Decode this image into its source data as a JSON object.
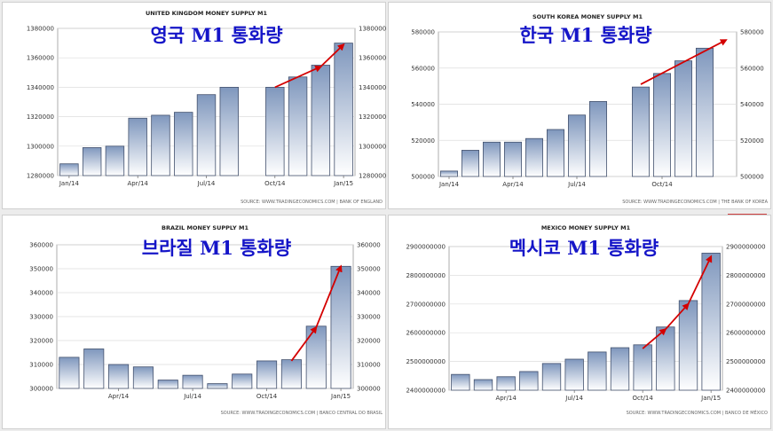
{
  "panels": [
    {
      "title": "UNITED KINGDOM MONEY SUPPLY M1",
      "overlay": "영국 M1 통화량",
      "source": "SOURCE: WWW.TRADINGECONOMICS.COM  |  BANK OF ENGLAND",
      "color_top": "#7f97bd",
      "color_bot": "#ffffff",
      "arrow_color": "#d40000"
    },
    {
      "title": "SOUTH KOREA MONEY SUPPLY M1",
      "overlay": "한국 M1 통화량",
      "source": "SOURCE: WWW.TRADINGECONOMICS.COM  |  THE BANK OF KOREA",
      "color_top": "#7f97bd",
      "color_bot": "#ffffff",
      "arrow_color": "#d40000"
    },
    {
      "title": "BRAZIL MONEY SUPPLY M1",
      "overlay": "브라질 M1 통화량",
      "source": "SOURCE: WWW.TRADINGECONOMICS.COM  |  BANCO CENTRAL DO BRASIL",
      "color_top": "#7f97bd",
      "color_bot": "#ffffff",
      "arrow_color": "#d40000"
    },
    {
      "title": "MEXICO MONEY SUPPLY M1",
      "overlay": "멕시코 M1 통화량",
      "source": "SOURCE: WWW.TRADINGECONOMICS.COM  |  BANCO DE MÉXICO",
      "color_top": "#7f97bd",
      "color_bot": "#ffffff",
      "arrow_color": "#d40000"
    }
  ],
  "chart_data": [
    {
      "type": "bar",
      "title": "UNITED KINGDOM MONEY SUPPLY M1",
      "x_ticks": [
        "Jan/14",
        "Apr/14",
        "Jul/14",
        "Oct/14",
        "Jan/15"
      ],
      "values": [
        1288000,
        1299000,
        1300000,
        1319000,
        1321000,
        1323000,
        1335000,
        1340000,
        null,
        1340000,
        1347000,
        1355000,
        1370000
      ],
      "ylim": [
        1280000,
        1380000
      ],
      "y_ticks": [
        "1280000",
        "1300000",
        "1320000",
        "1340000",
        "1360000",
        "1380000"
      ],
      "grid": true,
      "dual_axis": true,
      "trend": [
        [
          9,
          1340000
        ],
        [
          11,
          1354000
        ],
        [
          12,
          1369000
        ]
      ]
    },
    {
      "type": "bar",
      "title": "SOUTH KOREA MONEY SUPPLY M1",
      "x_ticks": [
        "Jan/14",
        "Apr/14",
        "Jul/14",
        "Oct/14"
      ],
      "values": [
        503000,
        514500,
        519000,
        519000,
        521000,
        526000,
        534000,
        541500,
        null,
        549500,
        557000,
        564000,
        571000
      ],
      "ylim": [
        500000,
        580000
      ],
      "y_ticks": [
        "500000",
        "520000",
        "540000",
        "560000",
        "580000"
      ],
      "grid": true,
      "dual_axis": true,
      "trend": [
        [
          9,
          551000
        ],
        [
          13,
          575500
        ]
      ]
    },
    {
      "type": "bar",
      "title": "BRAZIL MONEY SUPPLY M1",
      "x_ticks": [
        "Apr/14",
        "Jul/14",
        "Oct/14",
        "Jan/15"
      ],
      "values": [
        313000,
        316500,
        310000,
        309000,
        303500,
        305500,
        302000,
        306000,
        311500,
        312000,
        326000,
        351000
      ],
      "ylim": [
        300000,
        360000
      ],
      "y_ticks": [
        "300000",
        "310000",
        "320000",
        "330000",
        "340000",
        "350000",
        "360000"
      ],
      "grid": true,
      "dual_axis": true,
      "trend": [
        [
          9,
          311500
        ],
        [
          10,
          325500
        ],
        [
          11,
          351000
        ]
      ]
    },
    {
      "type": "bar",
      "title": "MEXICO MONEY SUPPLY M1",
      "x_ticks": [
        "Apr/14",
        "Jul/14",
        "Oct/14",
        "Jan/15"
      ],
      "values": [
        2455000000,
        2437000000,
        2447000000,
        2465000000,
        2493000000,
        2508000000,
        2533000000,
        2548000000,
        2558000000,
        2620000000,
        2712000000,
        2877000000
      ],
      "ylim": [
        2400000000,
        2900000000
      ],
      "y_ticks": [
        "2400000000",
        "2500000000",
        "2600000000",
        "2700000000",
        "2800000000",
        "2900000000"
      ],
      "grid": true,
      "dual_axis": true,
      "trend": [
        [
          8,
          2545000000
        ],
        [
          9,
          2612000000
        ],
        [
          10,
          2700000000
        ],
        [
          11,
          2865000000
        ]
      ]
    }
  ]
}
